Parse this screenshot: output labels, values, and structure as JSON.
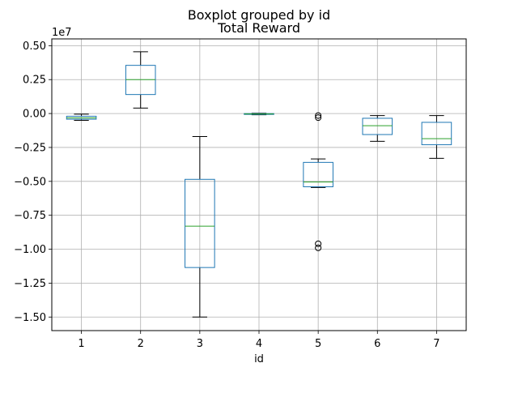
{
  "chart_data": {
    "type": "boxplot",
    "suptitle": "Boxplot grouped by id",
    "title": "Total Reward",
    "xlabel": "id",
    "ylabel": "",
    "y_offset_label": "1e7",
    "ylim": [
      -16000000.0,
      5500000.0
    ],
    "y_ticks": [
      5000000.0,
      2500000.0,
      0,
      -2500000.0,
      -5000000.0,
      -7500000.0,
      -10000000.0,
      -12500000.0,
      -15000000.0
    ],
    "y_tick_labels": [
      "0.50",
      "0.25",
      "0.00",
      "−0.25",
      "−0.50",
      "−0.75",
      "−1.00",
      "−1.25",
      "−1.50"
    ],
    "categories": [
      "1",
      "2",
      "3",
      "4",
      "5",
      "6",
      "7"
    ],
    "grid": true,
    "colors": {
      "box": "#1f77b4",
      "median": "#2ca02c",
      "whisker": "#000000",
      "grid": "#b0b0b0",
      "frame": "#000000"
    },
    "boxes": [
      {
        "id": "1",
        "whislo": -500000,
        "q1": -420000,
        "med": -320000,
        "q3": -200000,
        "whishi": -50000,
        "fliers": []
      },
      {
        "id": "2",
        "whislo": 400000,
        "q1": 1400000,
        "med": 2500000,
        "q3": 3550000,
        "whishi": 4550000,
        "fliers": []
      },
      {
        "id": "3",
        "whislo": -15000000,
        "q1": -11350000,
        "med": -8300000,
        "q3": -4850000,
        "whishi": -1700000,
        "fliers": []
      },
      {
        "id": "4",
        "whislo": -90000,
        "q1": -60000,
        "med": -30000,
        "q3": -5000,
        "whishi": 20000,
        "fliers": []
      },
      {
        "id": "5",
        "whislo": -5450000,
        "q1": -5400000,
        "med": -5050000,
        "q3": -3600000,
        "whishi": -3350000,
        "fliers": [
          -150000,
          -300000,
          -9600000,
          -9900000
        ]
      },
      {
        "id": "6",
        "whislo": -2050000,
        "q1": -1550000,
        "med": -900000,
        "q3": -350000,
        "whishi": -150000,
        "fliers": []
      },
      {
        "id": "7",
        "whislo": -3300000,
        "q1": -2300000,
        "med": -1850000,
        "q3": -650000,
        "whishi": -150000,
        "fliers": []
      }
    ]
  }
}
